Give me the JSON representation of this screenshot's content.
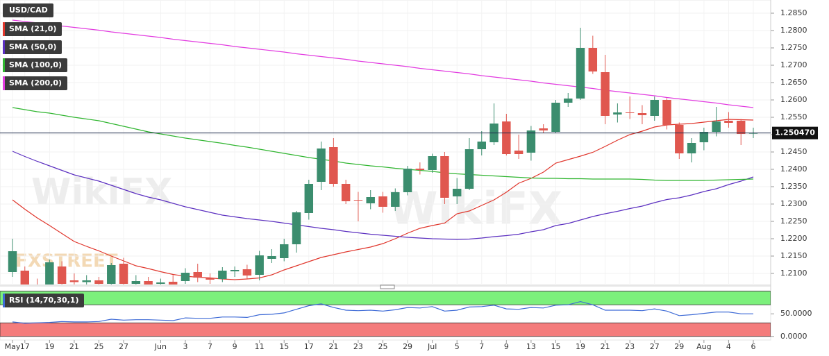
{
  "watermark": {
    "brand": "FXSTREET",
    "site": "WikiFX"
  },
  "chart_data": [
    {
      "type": "candlestick",
      "title": "USD/CAD",
      "up_color": "#3b8d6e",
      "down_color": "#e0574f",
      "categories": [
        "May",
        "17",
        null,
        "19",
        null,
        "21",
        null,
        "25",
        null,
        "27",
        null,
        null,
        "Jun",
        null,
        "3",
        null,
        "7",
        null,
        "9",
        null,
        "11",
        null,
        "15",
        null,
        "17",
        null,
        "21",
        null,
        "23",
        null,
        "25",
        null,
        "29",
        null,
        "Jul",
        null,
        "5",
        null,
        "7",
        null,
        "9",
        null,
        "13",
        null,
        "15",
        null,
        "19",
        null,
        "21",
        null,
        "23",
        null,
        "27",
        null,
        "29",
        null,
        "Aug",
        null,
        "4",
        null,
        "6"
      ],
      "open": [
        1.2104,
        1.2108,
        1.206,
        1.206,
        1.212,
        1.208,
        1.2075,
        1.208,
        1.207,
        1.2128,
        1.207,
        1.2078,
        1.207,
        1.2076,
        1.2078,
        1.2104,
        1.2086,
        1.2084,
        1.2106,
        1.2112,
        1.2096,
        1.2142,
        1.2144,
        1.2184,
        1.2274,
        1.2364,
        1.2464,
        1.2358,
        1.2312,
        1.2302,
        1.2322,
        1.2292,
        1.2334,
        1.2402,
        1.2398,
        1.2438,
        1.2322,
        1.2344,
        1.2458,
        1.2478,
        1.2538,
        1.2454,
        1.2448,
        1.2518,
        1.2508,
        1.2592,
        1.2604,
        1.275,
        1.268,
        1.2558,
        1.2564,
        1.2562,
        1.2554,
        1.26,
        1.2528,
        1.2446,
        1.2478,
        1.2508,
        1.254,
        1.254,
        1.2504
      ],
      "high": [
        1.22,
        1.212,
        1.2085,
        1.214,
        1.2135,
        1.21,
        1.2095,
        1.209,
        1.213,
        1.2145,
        1.2095,
        1.209,
        1.2085,
        1.2095,
        1.2115,
        1.2128,
        1.21,
        1.2118,
        1.212,
        1.2125,
        1.2165,
        1.217,
        1.22,
        1.228,
        1.237,
        1.248,
        1.249,
        1.237,
        1.2335,
        1.234,
        1.2335,
        1.2345,
        1.241,
        1.242,
        1.2445,
        1.245,
        1.2375,
        1.249,
        1.251,
        1.259,
        1.256,
        1.25,
        1.2525,
        1.253,
        1.26,
        1.262,
        1.2808,
        1.2785,
        1.273,
        1.259,
        1.261,
        1.2585,
        1.261,
        1.2605,
        1.2535,
        1.249,
        1.252,
        1.258,
        1.2565,
        1.2545,
        1.252
      ],
      "low": [
        1.209,
        1.204,
        1.204,
        1.2045,
        1.206,
        1.205,
        1.2055,
        1.205,
        1.206,
        1.206,
        1.206,
        1.2055,
        1.2062,
        1.206,
        1.207,
        1.2075,
        1.207,
        1.2075,
        1.209,
        1.2085,
        1.208,
        1.213,
        1.2135,
        1.216,
        1.2255,
        1.234,
        1.235,
        1.23,
        1.225,
        1.2285,
        1.2275,
        1.228,
        1.2325,
        1.2385,
        1.239,
        1.23,
        1.23,
        1.234,
        1.244,
        1.247,
        1.244,
        1.243,
        1.2425,
        1.2505,
        1.2505,
        1.258,
        1.26,
        1.2675,
        1.253,
        1.2535,
        1.2545,
        1.253,
        1.254,
        1.2515,
        1.243,
        1.242,
        1.2455,
        1.2495,
        1.252,
        1.247,
        1.249
      ],
      "close": [
        1.2164,
        1.206,
        1.205,
        1.2132,
        1.207,
        1.2075,
        1.208,
        1.207,
        1.2124,
        1.207,
        1.2078,
        1.2068,
        1.2074,
        1.2068,
        1.2102,
        1.2088,
        1.2082,
        1.2108,
        1.211,
        1.2094,
        1.2152,
        1.215,
        1.2184,
        1.2276,
        1.2358,
        1.246,
        1.2358,
        1.2308,
        1.231,
        1.232,
        1.2292,
        1.2334,
        1.2402,
        1.2398,
        1.2438,
        1.2318,
        1.2344,
        1.2458,
        1.248,
        1.2532,
        1.2444,
        1.2444,
        1.2512,
        1.2512,
        1.2592,
        1.2604,
        1.275,
        1.2682,
        1.2554,
        1.2564,
        1.2562,
        1.2556,
        1.26,
        1.2528,
        1.2446,
        1.2476,
        1.2508,
        1.2538,
        1.2534,
        1.2502,
        1.25047
      ],
      "series": [
        {
          "name": "SMA (21,0)",
          "color": "#e0362c",
          "values": [
            1.2312,
            1.2285,
            1.226,
            1.2238,
            1.2215,
            1.2192,
            1.2178,
            1.2165,
            1.215,
            1.2136,
            1.2122,
            1.2114,
            1.2105,
            1.2097,
            1.2092,
            1.2089,
            1.2087,
            1.2084,
            1.2082,
            1.2084,
            1.2087,
            1.2096,
            1.211,
            1.2122,
            1.2134,
            1.2146,
            1.2154,
            1.2162,
            1.2169,
            1.2176,
            1.2186,
            1.22,
            1.2216,
            1.223,
            1.2238,
            1.2245,
            1.2272,
            1.228,
            1.2296,
            1.2312,
            1.2334,
            1.236,
            1.2374,
            1.2392,
            1.2418,
            1.2428,
            1.2438,
            1.2449,
            1.2466,
            1.2484,
            1.25,
            1.251,
            1.2522,
            1.2528,
            1.253,
            1.2532,
            1.2536,
            1.254,
            1.2544,
            1.2543,
            1.2542
          ]
        },
        {
          "name": "SMA (50,0)",
          "color": "#5b2fc0",
          "values": [
            1.2452,
            1.2437,
            1.2423,
            1.241,
            1.2397,
            1.2384,
            1.2375,
            1.2366,
            1.2354,
            1.2342,
            1.233,
            1.232,
            1.2312,
            1.2302,
            1.2292,
            1.2284,
            1.2276,
            1.2268,
            1.2263,
            1.2258,
            1.2254,
            1.225,
            1.2245,
            1.224,
            1.2235,
            1.223,
            1.2226,
            1.2221,
            1.2217,
            1.2213,
            1.221,
            1.2207,
            1.2204,
            1.2202,
            1.22,
            1.2199,
            1.2198,
            1.2199,
            1.2202,
            1.2206,
            1.2209,
            1.2213,
            1.222,
            1.2226,
            1.2238,
            1.2244,
            1.2254,
            1.2264,
            1.2272,
            1.2279,
            1.2287,
            1.2294,
            1.2304,
            1.2313,
            1.2318,
            1.2326,
            1.2336,
            1.2344,
            1.2356,
            1.2366,
            1.2378
          ]
        },
        {
          "name": "SMA (100,0)",
          "color": "#2fb52f",
          "values": [
            1.2578,
            1.2572,
            1.2566,
            1.2562,
            1.2556,
            1.255,
            1.2545,
            1.254,
            1.2532,
            1.2524,
            1.2516,
            1.2508,
            1.2502,
            1.2496,
            1.249,
            1.2485,
            1.248,
            1.2475,
            1.2469,
            1.2464,
            1.2458,
            1.2452,
            1.2446,
            1.244,
            1.2434,
            1.2429,
            1.2424,
            1.2418,
            1.2414,
            1.241,
            1.2407,
            1.2403,
            1.24,
            1.2397,
            1.2394,
            1.239,
            1.2387,
            1.2385,
            1.2383,
            1.2381,
            1.2379,
            1.2377,
            1.2375,
            1.2374,
            1.2374,
            1.2373,
            1.2373,
            1.2372,
            1.2372,
            1.2372,
            1.2372,
            1.2371,
            1.2369,
            1.2368,
            1.2368,
            1.2368,
            1.2368,
            1.2369,
            1.237,
            1.2371,
            1.2372
          ]
        },
        {
          "name": "SMA (200,0)",
          "color": "#e23be0",
          "values": [
            1.283,
            1.2826,
            1.2822,
            1.2817,
            1.2813,
            1.2809,
            1.2805,
            1.2801,
            1.2796,
            1.2792,
            1.2788,
            1.2784,
            1.278,
            1.2775,
            1.2771,
            1.2767,
            1.2763,
            1.2759,
            1.2754,
            1.275,
            1.2746,
            1.2742,
            1.2738,
            1.2733,
            1.2729,
            1.2725,
            1.2721,
            1.2717,
            1.2712,
            1.2708,
            1.2704,
            1.27,
            1.2696,
            1.2691,
            1.2687,
            1.2683,
            1.2679,
            1.2675,
            1.267,
            1.2666,
            1.2662,
            1.2658,
            1.2654,
            1.2649,
            1.2645,
            1.2641,
            1.2637,
            1.2633,
            1.2628,
            1.2624,
            1.262,
            1.2616,
            1.2612,
            1.2607,
            1.2603,
            1.2599,
            1.2595,
            1.2591,
            1.2586,
            1.2582,
            1.2578
          ]
        }
      ],
      "last_price": {
        "value": 1.25047,
        "label": "1.250470"
      },
      "ylim": [
        1.2068,
        1.2888
      ],
      "yticks": [
        {
          "value": 1.21,
          "label": "1.2100"
        },
        {
          "value": 1.215,
          "label": "1.2150"
        },
        {
          "value": 1.22,
          "label": "1.2200"
        },
        {
          "value": 1.225,
          "label": "1.2250"
        },
        {
          "value": 1.23,
          "label": "1.2300"
        },
        {
          "value": 1.235,
          "label": "1.2350"
        },
        {
          "value": 1.24,
          "label": "1.2400"
        },
        {
          "value": 1.245,
          "label": "1.2450"
        },
        {
          "value": 1.25,
          "label": "1.2500"
        },
        {
          "value": 1.255,
          "label": "1.2550"
        },
        {
          "value": 1.26,
          "label": "1.2600"
        },
        {
          "value": 1.265,
          "label": "1.2650"
        },
        {
          "value": 1.27,
          "label": "1.2700"
        },
        {
          "value": 1.275,
          "label": "1.2750"
        },
        {
          "value": 1.28,
          "label": "1.2800"
        },
        {
          "value": 1.285,
          "label": "1.2850"
        }
      ],
      "grid": true
    },
    {
      "type": "line",
      "title": "RSI (14,70,30,1)",
      "color": "#3d6ad6",
      "values": [
        32,
        29,
        30,
        31,
        33,
        32,
        32,
        33,
        38,
        36,
        37,
        37,
        36,
        35,
        41,
        40,
        40,
        43,
        43,
        42,
        48,
        49,
        52,
        60,
        68,
        72,
        64,
        58,
        57,
        58,
        56,
        59,
        64,
        63,
        66,
        56,
        58,
        65,
        66,
        69,
        61,
        60,
        64,
        63,
        69,
        70,
        77,
        70,
        58,
        58,
        58,
        57,
        61,
        56,
        46,
        48,
        51,
        54,
        54,
        50,
        50
      ],
      "bands": [
        {
          "from": 70,
          "to": 100,
          "color": "#7cf07c"
        },
        {
          "from": 0,
          "to": 30,
          "color": "#f47c7c"
        }
      ],
      "ylim": [
        -8,
        101
      ],
      "yticks": [
        {
          "value": 50,
          "label": "50.0000"
        },
        {
          "value": 0,
          "label": "0.0000"
        }
      ]
    }
  ]
}
